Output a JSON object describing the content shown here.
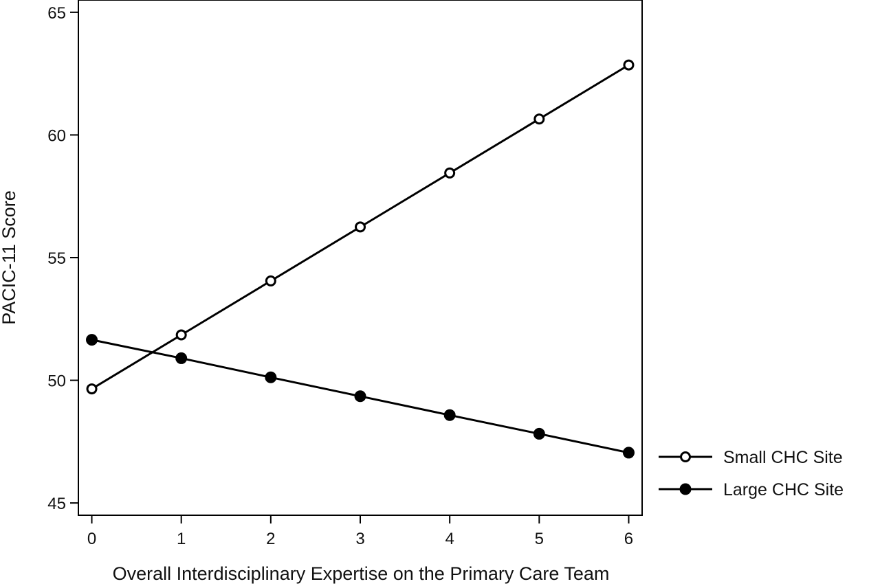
{
  "chart_data": {
    "type": "line",
    "title": "",
    "xlabel": "Overall Interdisciplinary Expertise on the Primary Care Team",
    "ylabel": "PACIC-11 Score",
    "x": [
      0,
      1,
      2,
      3,
      4,
      5,
      6
    ],
    "xticks": [
      "0",
      "1",
      "2",
      "3",
      "4",
      "5",
      "6"
    ],
    "yticks": [
      "45",
      "50",
      "55",
      "60",
      "65"
    ],
    "xlim": [
      -0.15,
      6.15
    ],
    "ylim": [
      44.5,
      65.5
    ],
    "grid": false,
    "legend_position": "right",
    "series": [
      {
        "name": "Small CHC Site",
        "marker": "open-circle",
        "color": "#000000",
        "values": [
          49.65,
          51.85,
          54.05,
          56.25,
          58.45,
          60.65,
          62.85
        ]
      },
      {
        "name": "Large CHC Site",
        "marker": "filled-circle",
        "color": "#000000",
        "values": [
          51.65,
          50.9,
          50.12,
          49.35,
          48.58,
          47.82,
          47.05
        ]
      }
    ]
  }
}
